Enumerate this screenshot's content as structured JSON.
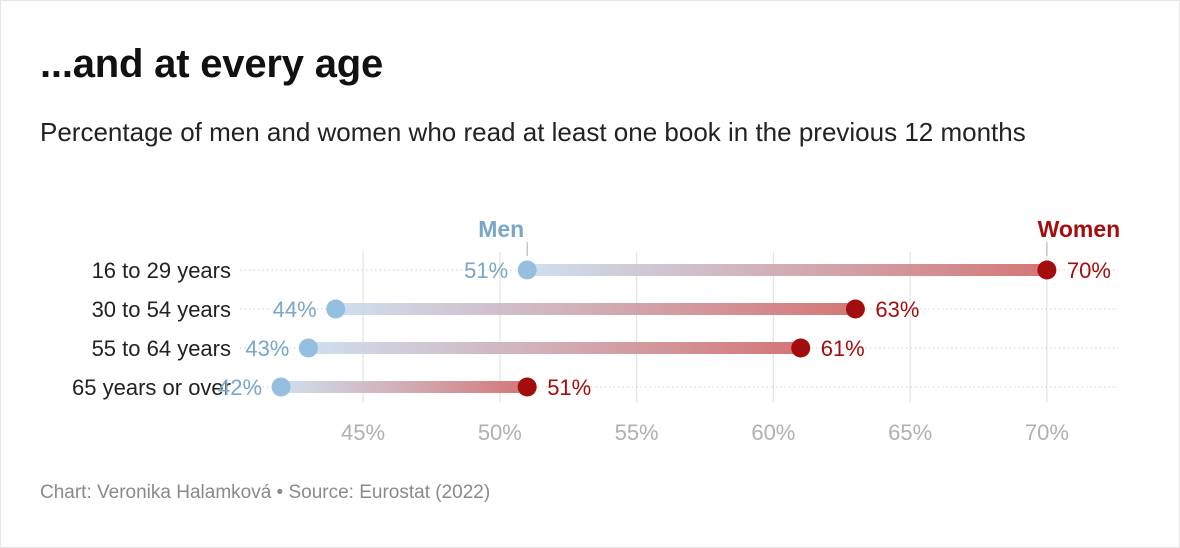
{
  "title": "...and at every age",
  "subtitle": "Percentage of men and women who read at least one book in the previous 12 months",
  "source": "Chart: Veronika Halamková • Source: Eurostat (2022)",
  "colors": {
    "men": "#94bfdf",
    "men_text": "#7aa6c8",
    "women": "#a40d0d",
    "women_line": "#d26f6f",
    "grid": "#e3e3e3",
    "tick_text": "#b0b0b0"
  },
  "chart_data": {
    "type": "dumbbell",
    "categories": [
      "16 to 29 years",
      "30 to 54 years",
      "55 to 64 years",
      "65 years or over"
    ],
    "series": [
      {
        "name": "Men",
        "values": [
          51,
          44,
          43,
          42
        ]
      },
      {
        "name": "Women",
        "values": [
          70,
          63,
          61,
          51
        ]
      }
    ],
    "value_labels": {
      "Men": [
        "51%",
        "44%",
        "43%",
        "42%"
      ],
      "Women": [
        "70%",
        "63%",
        "61%",
        "51%"
      ]
    },
    "x_ticks": [
      45,
      50,
      55,
      60,
      65,
      70
    ],
    "x_tick_labels": [
      "45%",
      "50%",
      "55%",
      "60%",
      "65%",
      "70%"
    ],
    "xlim": [
      40.5,
      72.6
    ],
    "grid": true,
    "legend": "inline-top"
  }
}
